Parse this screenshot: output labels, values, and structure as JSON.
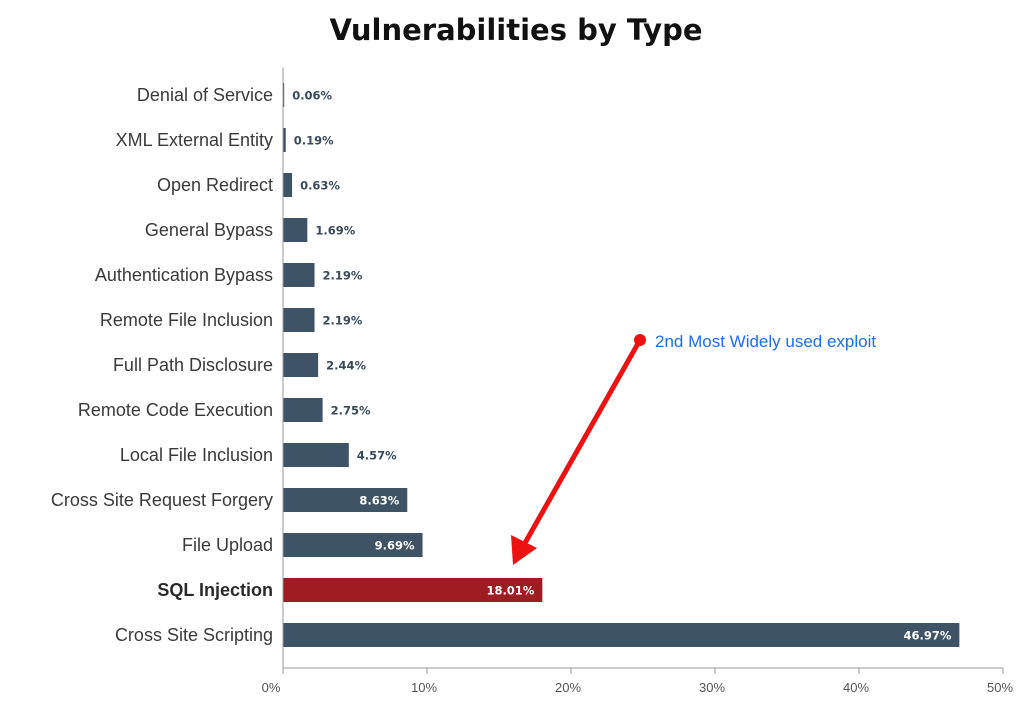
{
  "colors": {
    "bar": "#3f5366",
    "highlight_bar": "#9e1c22",
    "axis": "#999999",
    "annotation_arrow": "#ee1111",
    "annotation_text": "#1a6ff0"
  },
  "chart_data": {
    "type": "bar",
    "orientation": "horizontal",
    "title": "Vulnerabilities by Type",
    "xlabel": "",
    "ylabel": "",
    "xlim": [
      0,
      50
    ],
    "grid": false,
    "legend": "none",
    "x_ticks": [
      "0%",
      "10%",
      "20%",
      "30%",
      "40%",
      "50%"
    ],
    "categories": [
      "Denial of Service",
      "XML External Entity",
      "Open Redirect",
      "General Bypass",
      "Authentication Bypass",
      "Remote File Inclusion",
      "Full Path Disclosure",
      "Remote Code Execution",
      "Local File Inclusion",
      "Cross Site Request Forgery",
      "File Upload",
      "SQL Injection",
      "Cross Site Scripting"
    ],
    "values": [
      0.06,
      0.19,
      0.63,
      1.69,
      2.19,
      2.19,
      2.44,
      2.75,
      4.57,
      8.63,
      9.69,
      18.01,
      46.97
    ],
    "value_labels": [
      "0.06%",
      "0.19%",
      "0.63%",
      "1.69%",
      "2.19%",
      "2.19%",
      "2.44%",
      "2.75%",
      "4.57%",
      "8.63%",
      "9.69%",
      "18.01%",
      "46.97%"
    ],
    "highlighted_category": "SQL Injection",
    "annotation": {
      "text": "2nd Most Widely used exploit",
      "points_to": "SQL Injection"
    }
  }
}
